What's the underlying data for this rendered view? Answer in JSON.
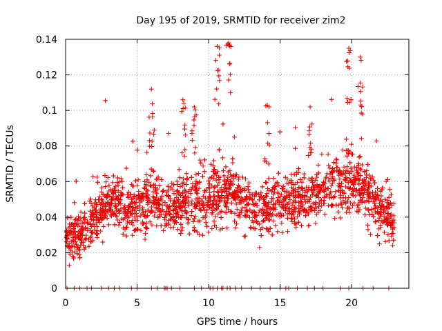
{
  "chart_data": {
    "type": "scatter",
    "title": "Day 195 of 2019, SRMTID for receiver zim2",
    "xlabel": "GPS time / hours",
    "ylabel": "SRMTID / TECUs",
    "xlim": [
      0,
      24
    ],
    "ylim": [
      0,
      0.14
    ],
    "x_ticks": [
      0,
      5,
      10,
      15,
      20
    ],
    "x_tick_labels": [
      "0",
      "5",
      "10",
      "15",
      "20"
    ],
    "y_ticks": [
      0,
      0.02,
      0.04,
      0.06,
      0.08,
      0.1,
      0.12,
      0.14
    ],
    "y_tick_labels": [
      "0",
      "0.02",
      "0.04",
      "0.06",
      "0.08",
      "0.1",
      "0.12",
      "0.14"
    ],
    "grid": true,
    "marker": "+",
    "marker_color": "#ee0000",
    "series": [
      {
        "name": "SRMTID",
        "approx_point_count": 2600,
        "sampling_interval_hours": 0.00833,
        "x_range": [
          0,
          23
        ],
        "envelope": {
          "x": [
            0,
            1,
            2,
            3,
            4,
            5,
            6,
            7,
            8,
            9,
            10,
            11,
            12,
            13,
            14,
            15,
            16,
            17,
            18,
            19,
            20,
            21,
            22,
            23
          ],
          "median": [
            0.03,
            0.03,
            0.04,
            0.05,
            0.045,
            0.045,
            0.05,
            0.047,
            0.047,
            0.05,
            0.05,
            0.055,
            0.05,
            0.045,
            0.045,
            0.05,
            0.05,
            0.05,
            0.055,
            0.06,
            0.06,
            0.055,
            0.045,
            0.035
          ],
          "spread": [
            0.01,
            0.01,
            0.012,
            0.012,
            0.012,
            0.012,
            0.014,
            0.013,
            0.013,
            0.015,
            0.016,
            0.015,
            0.012,
            0.012,
            0.012,
            0.012,
            0.012,
            0.012,
            0.012,
            0.014,
            0.015,
            0.013,
            0.013,
            0.012
          ]
        },
        "peaks": [
          {
            "x": 6.0,
            "y": 0.112
          },
          {
            "x": 8.2,
            "y": 0.106
          },
          {
            "x": 9.0,
            "y": 0.102
          },
          {
            "x": 10.6,
            "y": 0.136
          },
          {
            "x": 11.4,
            "y": 0.138
          },
          {
            "x": 14.1,
            "y": 0.103
          },
          {
            "x": 17.1,
            "y": 0.102
          },
          {
            "x": 19.8,
            "y": 0.135
          },
          {
            "x": 20.6,
            "y": 0.13
          }
        ],
        "zero_values_x": [
          0.1,
          0.6,
          1.0,
          1.5,
          1.8,
          2.5,
          3.0,
          3.4,
          3.8,
          4.6,
          5.0,
          6.0,
          6.4,
          6.9,
          7.0,
          7.1,
          7.4,
          8.0,
          9.0,
          9.5,
          10.1,
          10.3,
          10.6,
          10.9,
          11.0,
          11.3,
          11.5,
          11.9,
          12.3,
          13.0,
          13.6,
          14.3,
          15.0,
          15.4,
          15.6,
          16.2,
          16.9,
          17.4,
          18.0,
          19.2,
          19.8,
          20.8,
          21.5,
          22.6
        ]
      }
    ]
  }
}
